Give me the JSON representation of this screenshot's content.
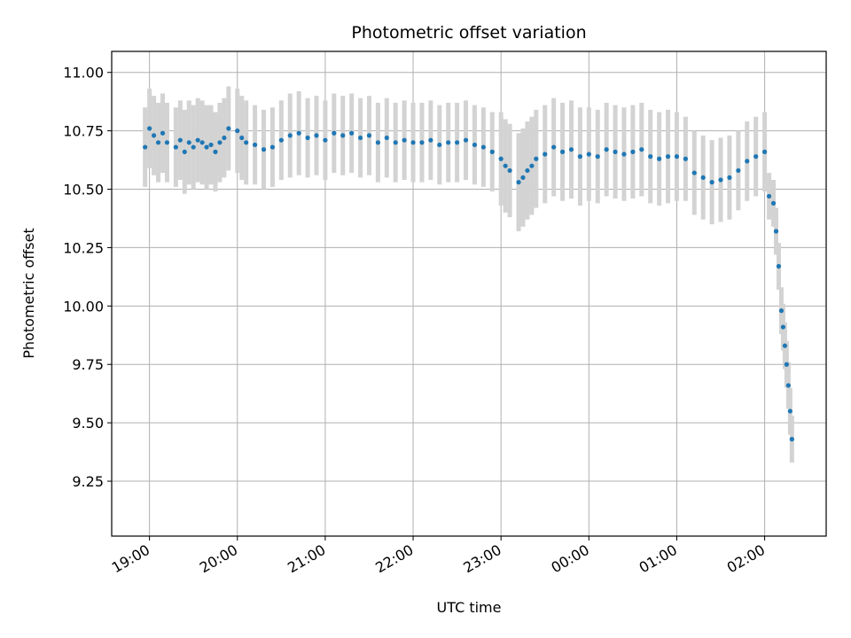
{
  "chart_data": {
    "type": "scatter",
    "title": "Photometric offset variation",
    "xlabel": "UTC time",
    "ylabel": "Photometric offset",
    "x_ticks": [
      "19:00",
      "20:00",
      "21:00",
      "22:00",
      "23:00",
      "00:00",
      "01:00",
      "02:00"
    ],
    "y_ticks": [
      "9.25",
      "9.50",
      "9.75",
      "10.00",
      "10.25",
      "10.50",
      "10.75",
      "11.00"
    ],
    "xlim_hours": [
      -0.43,
      7.7
    ],
    "ylim": [
      9.015,
      11.09
    ],
    "grid": true,
    "series": [
      {
        "name": "Photometric offset",
        "marker_color": "#1f77b4",
        "errorbar_color": "#d3d3d3",
        "x_hours": [
          -0.05,
          0.0,
          0.05,
          0.1,
          0.15,
          0.2,
          0.3,
          0.35,
          0.4,
          0.45,
          0.5,
          0.55,
          0.6,
          0.65,
          0.7,
          0.75,
          0.8,
          0.85,
          0.9,
          1.0,
          1.05,
          1.1,
          1.2,
          1.3,
          1.4,
          1.5,
          1.6,
          1.7,
          1.8,
          1.9,
          2.0,
          2.1,
          2.2,
          2.3,
          2.4,
          2.5,
          2.6,
          2.7,
          2.8,
          2.9,
          3.0,
          3.1,
          3.2,
          3.3,
          3.4,
          3.5,
          3.6,
          3.7,
          3.8,
          3.9,
          4.0,
          4.05,
          4.1,
          4.2,
          4.25,
          4.3,
          4.35,
          4.4,
          4.5,
          4.6,
          4.7,
          4.8,
          4.9,
          5.0,
          5.1,
          5.2,
          5.3,
          5.4,
          5.5,
          5.6,
          5.7,
          5.8,
          5.9,
          6.0,
          6.1,
          6.2,
          6.3,
          6.4,
          6.5,
          6.6,
          6.7,
          6.8,
          6.9,
          7.0,
          7.05,
          7.1,
          7.13,
          7.16,
          7.19,
          7.21,
          7.23,
          7.25,
          7.27,
          7.29,
          7.31
        ],
        "y": [
          10.68,
          10.76,
          10.73,
          10.7,
          10.74,
          10.7,
          10.68,
          10.71,
          10.66,
          10.7,
          10.68,
          10.71,
          10.7,
          10.68,
          10.69,
          10.66,
          10.7,
          10.72,
          10.76,
          10.75,
          10.72,
          10.7,
          10.69,
          10.67,
          10.68,
          10.71,
          10.73,
          10.74,
          10.72,
          10.73,
          10.71,
          10.74,
          10.73,
          10.74,
          10.72,
          10.73,
          10.7,
          10.72,
          10.7,
          10.71,
          10.7,
          10.7,
          10.71,
          10.69,
          10.7,
          10.7,
          10.71,
          10.69,
          10.68,
          10.66,
          10.63,
          10.6,
          10.58,
          10.53,
          10.55,
          10.58,
          10.6,
          10.63,
          10.65,
          10.68,
          10.66,
          10.67,
          10.64,
          10.65,
          10.64,
          10.67,
          10.66,
          10.65,
          10.66,
          10.67,
          10.64,
          10.63,
          10.64,
          10.64,
          10.63,
          10.57,
          10.55,
          10.53,
          10.54,
          10.55,
          10.58,
          10.62,
          10.64,
          10.66,
          10.47,
          10.44,
          10.32,
          10.17,
          9.98,
          9.91,
          9.83,
          9.75,
          9.66,
          9.55,
          9.43
        ],
        "error": [
          0.17,
          0.17,
          0.17,
          0.17,
          0.17,
          0.17,
          0.17,
          0.17,
          0.18,
          0.18,
          0.18,
          0.18,
          0.18,
          0.18,
          0.17,
          0.17,
          0.17,
          0.17,
          0.18,
          0.18,
          0.18,
          0.18,
          0.17,
          0.17,
          0.17,
          0.17,
          0.18,
          0.18,
          0.17,
          0.17,
          0.17,
          0.17,
          0.17,
          0.17,
          0.17,
          0.17,
          0.17,
          0.17,
          0.17,
          0.17,
          0.17,
          0.17,
          0.17,
          0.17,
          0.17,
          0.17,
          0.17,
          0.17,
          0.17,
          0.17,
          0.2,
          0.2,
          0.2,
          0.21,
          0.21,
          0.21,
          0.21,
          0.21,
          0.21,
          0.21,
          0.21,
          0.21,
          0.21,
          0.2,
          0.2,
          0.2,
          0.2,
          0.2,
          0.2,
          0.2,
          0.2,
          0.2,
          0.2,
          0.19,
          0.18,
          0.18,
          0.18,
          0.18,
          0.18,
          0.18,
          0.17,
          0.17,
          0.17,
          0.17,
          0.1,
          0.1,
          0.1,
          0.1,
          0.1,
          0.1,
          0.1,
          0.1,
          0.1,
          0.1,
          0.1
        ]
      }
    ]
  }
}
